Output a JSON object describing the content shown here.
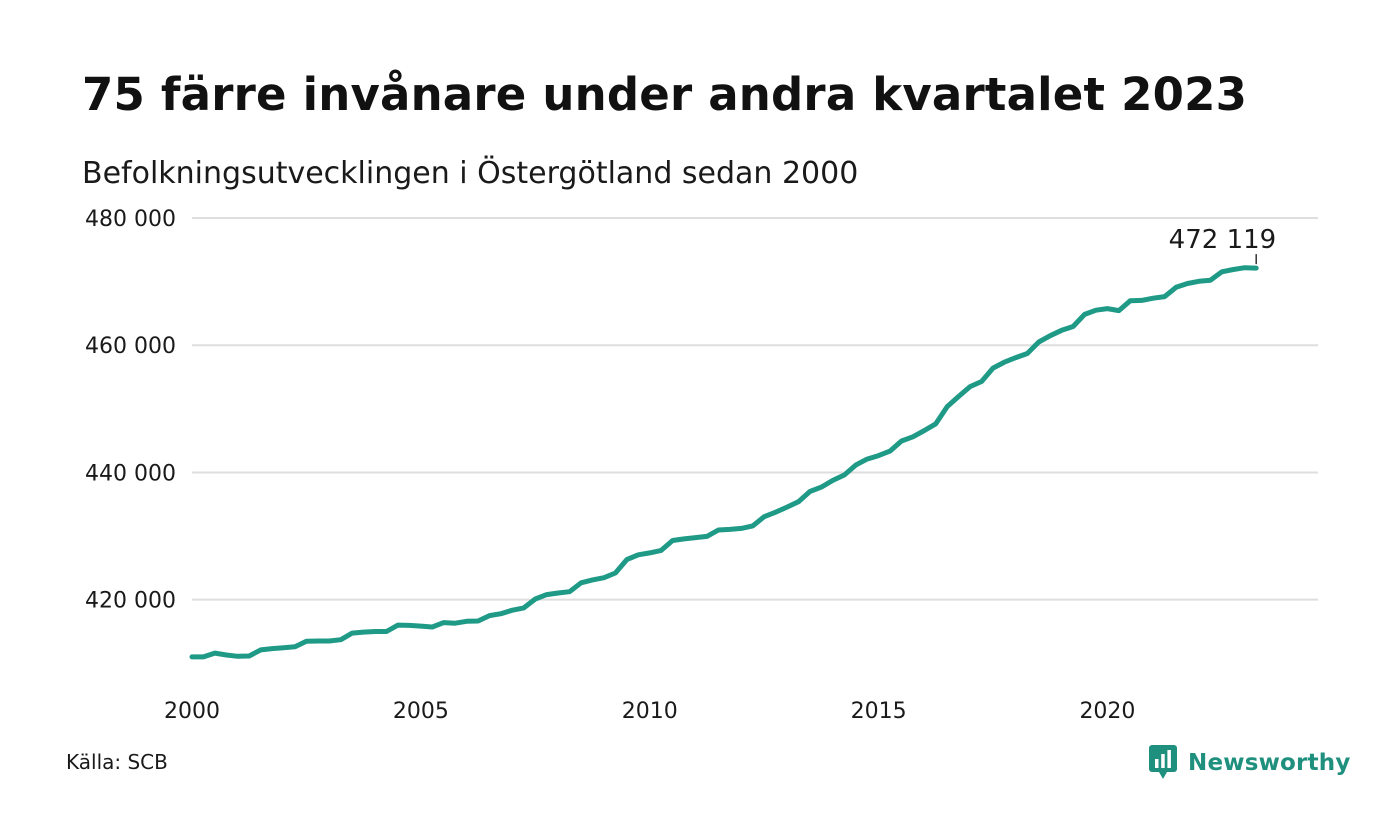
{
  "header": {
    "title": "75 färre invånare under andra kvartalet 2023",
    "subtitle": "Befolkningsutvecklingen i Östergötland sedan 2000"
  },
  "footer": {
    "source": "Källa: SCB",
    "brand": "Newsworthy",
    "brand_icon": "newsworthy-logo-icon"
  },
  "colors": {
    "line": "#1f9a86",
    "grid": "#dedede",
    "brand": "#1f8f7e"
  },
  "chart_data": {
    "type": "line",
    "title": "75 färre invånare under andra kvartalet 2023",
    "subtitle": "Befolkningsutvecklingen i Östergötland sedan 2000",
    "xlabel": "",
    "ylabel": "",
    "xlim": [
      2000,
      2024.6
    ],
    "ylim": [
      408000,
      480000
    ],
    "x_ticks": [
      2000,
      2005,
      2010,
      2015,
      2020
    ],
    "x_tick_labels": [
      "2000",
      "2005",
      "2010",
      "2015",
      "2020"
    ],
    "y_ticks": [
      420000,
      440000,
      460000,
      480000
    ],
    "y_tick_labels": [
      "420 000",
      "440 000",
      "460 000",
      "480 000"
    ],
    "grid": "horizontal",
    "annotation": {
      "text": "472 119",
      "x": 2023.25,
      "y": 472119
    },
    "series": [
      {
        "x": [
          2000.0,
          2000.25,
          2000.5,
          2000.75,
          2001.0,
          2001.25,
          2001.5,
          2001.75,
          2002.0,
          2002.25,
          2002.5,
          2002.75,
          2003.0,
          2003.25,
          2003.5,
          2003.75,
          2004.0,
          2004.25,
          2004.5,
          2004.75,
          2005.0,
          2005.25,
          2005.5,
          2005.75,
          2006.0,
          2006.25,
          2006.5,
          2006.75,
          2007.0,
          2007.25,
          2007.5,
          2007.75,
          2008.0,
          2008.25,
          2008.5,
          2008.75,
          2009.0,
          2009.25,
          2009.5,
          2009.75,
          2010.0,
          2010.25,
          2010.5,
          2010.75,
          2011.0,
          2011.25,
          2011.5,
          2011.75,
          2012.0,
          2012.25,
          2012.5,
          2012.75,
          2013.0,
          2013.25,
          2013.5,
          2013.75,
          2014.0,
          2014.25,
          2014.5,
          2014.75,
          2015.0,
          2015.25,
          2015.5,
          2015.75,
          2016.0,
          2016.25,
          2016.5,
          2016.75,
          2017.0,
          2017.25,
          2017.5,
          2017.75,
          2018.0,
          2018.25,
          2018.5,
          2018.75,
          2019.0,
          2019.25,
          2019.5,
          2019.75,
          2020.0,
          2020.25,
          2020.5,
          2020.75,
          2021.0,
          2021.25,
          2021.5,
          2021.75,
          2022.0,
          2022.25,
          2022.5,
          2022.75,
          2023.0,
          2023.25
        ],
        "values": [
          411000,
          411000,
          411600,
          411300,
          411100,
          411150,
          412100,
          412300,
          412450,
          412600,
          413450,
          413500,
          413500,
          413700,
          414750,
          414900,
          415000,
          415000,
          416000,
          415950,
          415850,
          415700,
          416400,
          416300,
          416600,
          416650,
          417500,
          417800,
          418350,
          418700,
          420100,
          420800,
          421050,
          421250,
          422650,
          423100,
          423450,
          424200,
          426300,
          427050,
          427350,
          427750,
          429300,
          429550,
          429750,
          429950,
          430950,
          431050,
          431200,
          431600,
          433050,
          433750,
          434550,
          435400,
          437000,
          437700,
          438750,
          439600,
          441150,
          442100,
          442650,
          443350,
          444950,
          445600,
          446600,
          447650,
          450350,
          451950,
          453500,
          454300,
          456400,
          457350,
          458050,
          458700,
          460500,
          461500,
          462350,
          462950,
          464850,
          465500,
          465750,
          465450,
          467000,
          467050,
          467400,
          467650,
          469100,
          469700,
          470050,
          470200,
          471550,
          471900,
          472194,
          472119
        ]
      }
    ]
  }
}
